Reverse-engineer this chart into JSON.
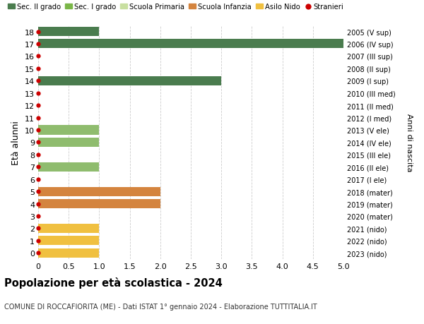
{
  "ages": [
    18,
    17,
    16,
    15,
    14,
    13,
    12,
    11,
    10,
    9,
    8,
    7,
    6,
    5,
    4,
    3,
    2,
    1,
    0
  ],
  "right_labels": [
    "2005 (V sup)",
    "2006 (IV sup)",
    "2007 (III sup)",
    "2008 (II sup)",
    "2009 (I sup)",
    "2010 (III med)",
    "2011 (II med)",
    "2012 (I med)",
    "2013 (V ele)",
    "2014 (IV ele)",
    "2015 (III ele)",
    "2016 (II ele)",
    "2017 (I ele)",
    "2018 (mater)",
    "2019 (mater)",
    "2020 (mater)",
    "2021 (nido)",
    "2022 (nido)",
    "2023 (nido)"
  ],
  "bar_values": [
    1,
    5,
    0,
    0,
    3,
    0,
    0,
    0,
    1,
    1,
    0,
    1,
    0,
    2,
    2,
    0,
    1,
    1,
    1
  ],
  "bar_colors": [
    "#4a7c4e",
    "#4a7c4e",
    "#4a7c4e",
    "#4a7c4e",
    "#4a7c4e",
    "#4a7c4e",
    "#4a7c4e",
    "#4a7c4e",
    "#8fbc6e",
    "#8fbc6e",
    "#8fbc6e",
    "#8fbc6e",
    "#8fbc6e",
    "#d4843e",
    "#d4843e",
    "#d4843e",
    "#f0c040",
    "#f0c040",
    "#f0c040"
  ],
  "stranieri_color": "#cc0000",
  "legend_items": [
    {
      "label": "Sec. II grado",
      "color": "#4a7c4e",
      "type": "patch"
    },
    {
      "label": "Sec. I grado",
      "color": "#7ab648",
      "type": "patch"
    },
    {
      "label": "Scuola Primaria",
      "color": "#c8dfa0",
      "type": "patch"
    },
    {
      "label": "Scuola Infanzia",
      "color": "#d4843e",
      "type": "patch"
    },
    {
      "label": "Asilo Nido",
      "color": "#f0c040",
      "type": "patch"
    },
    {
      "label": "Stranieri",
      "color": "#cc0000",
      "type": "circle"
    }
  ],
  "ylabel_left": "Età alunni",
  "ylabel_right": "Anni di nascita",
  "xlim": [
    0,
    5.0
  ],
  "xticks": [
    0,
    0.5,
    1.0,
    1.5,
    2.0,
    2.5,
    3.0,
    3.5,
    4.0,
    4.5,
    5.0
  ],
  "xtick_labels": [
    "0",
    "0.5",
    "1.0",
    "1.5",
    "2.0",
    "2.5",
    "3.0",
    "3.5",
    "4.0",
    "4.5",
    "5.0"
  ],
  "title": "Popolazione per età scolastica - 2024",
  "subtitle": "COMUNE DI ROCCAFIORITA (ME) - Dati ISTAT 1° gennaio 2024 - Elaborazione TUTTITALIA.IT",
  "bg_color": "#ffffff",
  "grid_color": "#cccccc",
  "bar_height": 0.75
}
